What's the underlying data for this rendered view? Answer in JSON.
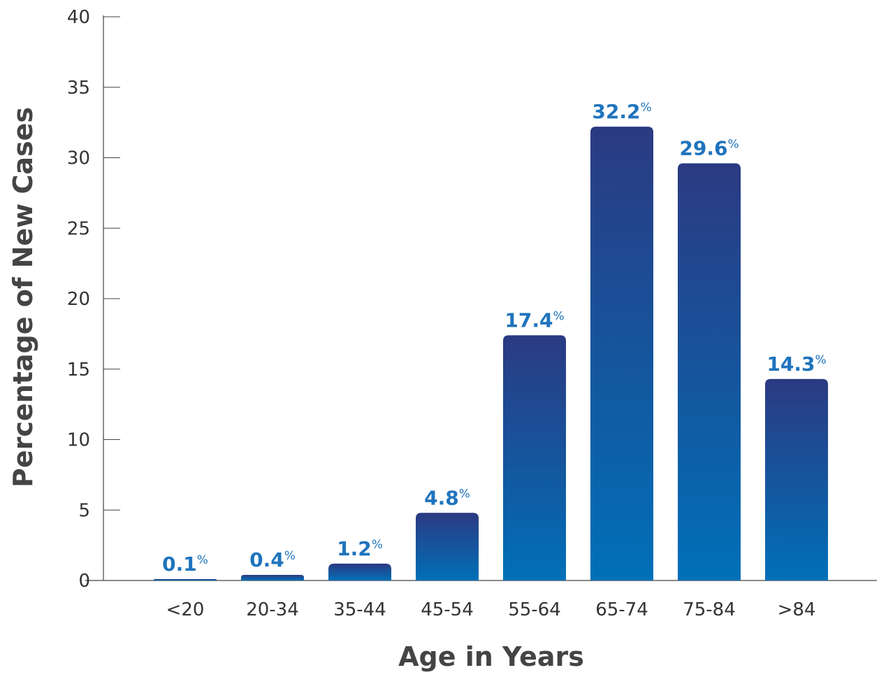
{
  "chart_data": {
    "type": "bar",
    "title": "",
    "xlabel": "Age in Years",
    "ylabel": "Percentage of New Cases",
    "categories": [
      "<20",
      "20-34",
      "35-44",
      "45-54",
      "55-64",
      "65-74",
      "75-84",
      ">84"
    ],
    "values": [
      0.1,
      0.4,
      1.2,
      4.8,
      17.4,
      32.2,
      29.6,
      14.3
    ],
    "value_labels": [
      "0.1",
      "0.4",
      "1.2",
      "4.8",
      "17.4",
      "32.2",
      "29.6",
      "14.3"
    ],
    "value_suffix": "%",
    "ylim": [
      0,
      40
    ],
    "yticks": [
      "0",
      "5",
      "10",
      "15",
      "20",
      "25",
      "30",
      "35",
      "40"
    ],
    "grid": false,
    "legend": "none",
    "colors": {
      "bar_top": "#2b3a82",
      "bar_bottom": "#0070b8",
      "label": "#1f74bd",
      "axis": "#444444",
      "text": "#333333"
    }
  }
}
